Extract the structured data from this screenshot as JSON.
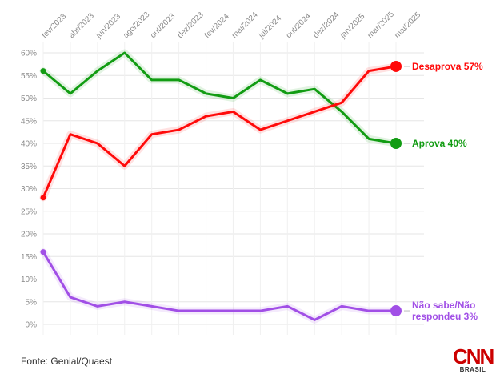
{
  "chart_data": {
    "type": "line",
    "x": [
      "fev/2023",
      "abr/2023",
      "jun/2023",
      "ago/2023",
      "out/2023",
      "dez/2023",
      "fev/2024",
      "mai/2024",
      "jul/2024",
      "out/2024",
      "dez/2024",
      "jan/2025",
      "mar/2025",
      "mai/2025"
    ],
    "x_tick_labels": [
      "fev/2023",
      "abr/2023",
      "jun/2023",
      "ago/2023",
      "out/2023",
      "dez/2023",
      "fev/2024",
      "mai/2024",
      "jul/2024",
      "out/2024",
      "dez/2024",
      "jan/2025",
      "mar/2025",
      "mai/2025"
    ],
    "y_tick_labels": [
      "0%",
      "5%",
      "10%",
      "15%",
      "20%",
      "25%",
      "30%",
      "35%",
      "40%",
      "45%",
      "50%",
      "55%",
      "60%"
    ],
    "ylim": [
      0,
      60
    ],
    "grid": true,
    "series": [
      {
        "name": "Aprova",
        "color": "#129c13",
        "values": [
          56,
          51,
          56,
          60,
          54,
          54,
          51,
          50,
          54,
          51,
          52,
          47,
          41,
          40
        ],
        "end_label": "Aprova 40%"
      },
      {
        "name": "Desaprova",
        "color": "#ff0a0a",
        "values": [
          28,
          42,
          40,
          35,
          42,
          43,
          46,
          47,
          43,
          45,
          47,
          49,
          56,
          57
        ],
        "end_label": "Desaprova 57%"
      },
      {
        "name": "Não sabe/Não respondeu",
        "color": "#a14fe6",
        "values": [
          16,
          6,
          4,
          5,
          4,
          3,
          3,
          3,
          3,
          4,
          1,
          4,
          3,
          3
        ],
        "end_label": [
          "Não sabe/Não",
          "respondeu 3%"
        ]
      }
    ]
  },
  "footer": {
    "source": "Fonte: Genial/Quaest",
    "logo_main": "CNN",
    "logo_sub": "BRASIL"
  }
}
